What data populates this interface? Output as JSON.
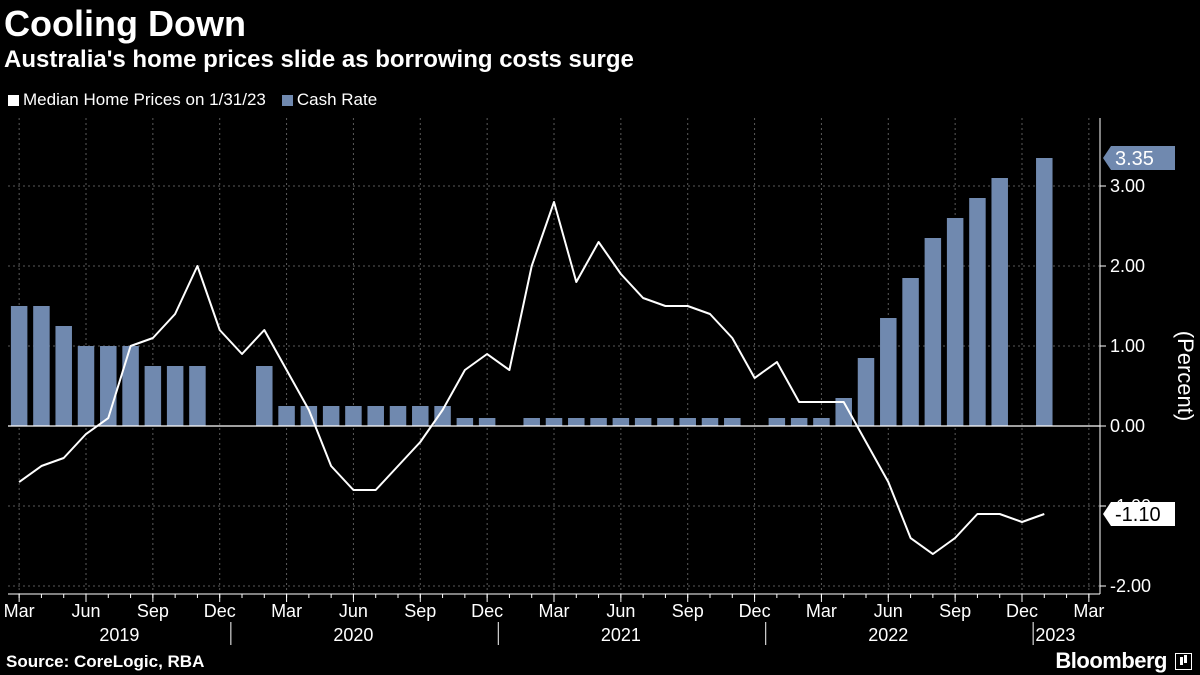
{
  "header": {
    "title": "Cooling Down",
    "subtitle": "Australia's home prices slide as borrowing costs surge"
  },
  "footer": {
    "source": "Source: CoreLogic, RBA",
    "brand": "Bloomberg"
  },
  "chart_data": {
    "type": "bar",
    "x_categories": [
      "Mar 2019",
      "Apr 2019",
      "May 2019",
      "Jun 2019",
      "Jul 2019",
      "Aug 2019",
      "Sep 2019",
      "Oct 2019",
      "Nov 2019",
      "Dec 2019",
      "Jan 2020",
      "Feb 2020",
      "Mar 2020",
      "Apr 2020",
      "May 2020",
      "Jun 2020",
      "Jul 2020",
      "Aug 2020",
      "Sep 2020",
      "Oct 2020",
      "Nov 2020",
      "Dec 2020",
      "Jan 2021",
      "Feb 2021",
      "Mar 2021",
      "Apr 2021",
      "May 2021",
      "Jun 2021",
      "Jul 2021",
      "Aug 2021",
      "Sep 2021",
      "Oct 2021",
      "Nov 2021",
      "Dec 2021",
      "Jan 2022",
      "Feb 2022",
      "Mar 2022",
      "Apr 2022",
      "May 2022",
      "Jun 2022",
      "Jul 2022",
      "Aug 2022",
      "Sep 2022",
      "Oct 2022",
      "Nov 2022",
      "Dec 2022",
      "Jan 2023",
      "Feb 2023",
      "Mar 2023"
    ],
    "series": [
      {
        "name": "Cash Rate",
        "kind": "bar",
        "color": "#7089AF",
        "values": [
          1.5,
          1.5,
          1.25,
          1.0,
          1.0,
          1.0,
          0.75,
          0.75,
          0.75,
          null,
          null,
          0.75,
          0.25,
          0.25,
          0.25,
          0.25,
          0.25,
          0.25,
          0.25,
          0.25,
          0.1,
          0.1,
          null,
          0.1,
          0.1,
          0.1,
          0.1,
          0.1,
          0.1,
          0.1,
          0.1,
          0.1,
          0.1,
          null,
          0.1,
          0.1,
          0.1,
          0.35,
          0.85,
          1.35,
          1.85,
          2.35,
          2.6,
          2.85,
          3.1,
          null,
          3.35,
          null,
          null
        ]
      },
      {
        "name": "Median Home Prices on 1/31/23",
        "kind": "line",
        "color": "#ffffff",
        "values": [
          -0.7,
          -0.5,
          -0.4,
          -0.1,
          0.1,
          1.0,
          1.1,
          1.4,
          2.0,
          1.2,
          0.9,
          1.2,
          0.7,
          0.2,
          -0.5,
          -0.8,
          -0.8,
          -0.5,
          -0.2,
          0.2,
          0.7,
          0.9,
          0.7,
          2.0,
          2.8,
          1.8,
          2.3,
          1.9,
          1.6,
          1.5,
          1.5,
          1.4,
          1.1,
          0.6,
          0.8,
          0.3,
          0.3,
          0.3,
          -0.2,
          -0.7,
          -1.4,
          -1.6,
          -1.4,
          -1.1,
          -1.1,
          -1.2,
          -1.1,
          null,
          null
        ]
      }
    ],
    "ylim": [
      -2.0,
      3.4
    ],
    "yticks": [
      -2.0,
      -1.0,
      0.0,
      1.0,
      2.0,
      3.0
    ],
    "ytick_labels": [
      "-2.00",
      "-1.00",
      "0.00",
      "1.00",
      "2.00",
      "3.00"
    ],
    "ylabel": "(Percent)",
    "x_month_ticks": [
      {
        "index": 0,
        "label": "Mar"
      },
      {
        "index": 3,
        "label": "Jun"
      },
      {
        "index": 6,
        "label": "Sep"
      },
      {
        "index": 9,
        "label": "Dec"
      },
      {
        "index": 12,
        "label": "Mar"
      },
      {
        "index": 15,
        "label": "Jun"
      },
      {
        "index": 18,
        "label": "Sep"
      },
      {
        "index": 21,
        "label": "Dec"
      },
      {
        "index": 24,
        "label": "Mar"
      },
      {
        "index": 27,
        "label": "Jun"
      },
      {
        "index": 30,
        "label": "Sep"
      },
      {
        "index": 33,
        "label": "Dec"
      },
      {
        "index": 36,
        "label": "Mar"
      },
      {
        "index": 39,
        "label": "Jun"
      },
      {
        "index": 42,
        "label": "Sep"
      },
      {
        "index": 45,
        "label": "Dec"
      },
      {
        "index": 48,
        "label": "Mar"
      }
    ],
    "x_year_labels": [
      {
        "center": 4.5,
        "label": "2019"
      },
      {
        "center": 15.0,
        "label": "2020"
      },
      {
        "center": 27.0,
        "label": "2021"
      },
      {
        "center": 39.0,
        "label": "2022"
      },
      {
        "center": 46.5,
        "label": "2023"
      }
    ],
    "x_year_dividers": [
      9.5,
      21.5,
      33.5,
      45.5
    ],
    "value_labels": [
      {
        "series": "Cash Rate",
        "value": 3.35,
        "text": "3.35",
        "style": "blue"
      },
      {
        "series": "Median Home Prices on 1/31/23",
        "value": -1.1,
        "text": "-1.10",
        "style": "white"
      }
    ],
    "grid": true,
    "legend_position": "top-left"
  },
  "colors": {
    "background": "#000000",
    "bar": "#7089AF",
    "line": "#ffffff",
    "grid": "#5a5a5a"
  }
}
